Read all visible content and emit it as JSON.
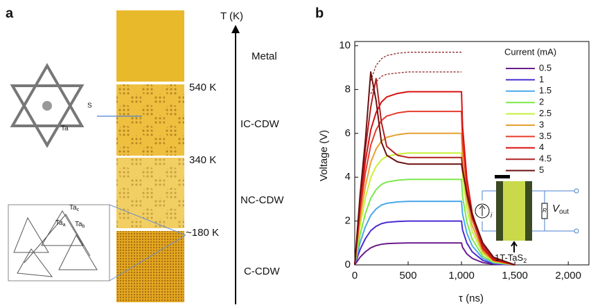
{
  "panel_a": {
    "label": "a",
    "axis_label": "T (K)",
    "phases": [
      "Metal",
      "IC-CDW",
      "NC-CDW",
      "C-CDW"
    ],
    "temperatures": [
      "540 K",
      "340 K",
      "~180 K"
    ],
    "star_labels": {
      "s": "S",
      "ta": "Ta"
    },
    "lattice_labels": [
      {
        "base": "Ta",
        "sub": "c"
      },
      {
        "base": "Ta",
        "sub": "a"
      },
      {
        "base": "Ta",
        "sub": "b"
      }
    ]
  },
  "chart_data": {
    "type": "line",
    "panel_label": "b",
    "x_label": "τ (ns)",
    "y_label": "Voltage (V)",
    "legend_title": "Current (mA)",
    "x": [
      0,
      50,
      100,
      150,
      200,
      250,
      300,
      400,
      500,
      700,
      1000,
      1010,
      1050,
      1100,
      1200,
      1300,
      1500
    ],
    "series": [
      {
        "name": "0.5",
        "color": "#6a1b8a",
        "values": [
          0,
          0.35,
          0.6,
          0.78,
          0.88,
          0.94,
          0.97,
          0.99,
          1,
          1,
          1,
          0.8,
          0.5,
          0.3,
          0.1,
          0.03,
          0
        ]
      },
      {
        "name": "1",
        "color": "#4b2bd1",
        "values": [
          0,
          0.7,
          1.2,
          1.56,
          1.76,
          1.88,
          1.94,
          1.98,
          2,
          2,
          2,
          1.6,
          1,
          0.6,
          0.2,
          0.06,
          0
        ]
      },
      {
        "name": "1.5",
        "color": "#4aa8ea",
        "values": [
          0,
          1.02,
          1.74,
          2.26,
          2.55,
          2.73,
          2.81,
          2.87,
          2.9,
          2.9,
          2.9,
          2.32,
          1.45,
          0.87,
          0.29,
          0.09,
          0
        ]
      },
      {
        "name": "2",
        "color": "#7be84a",
        "values": [
          0,
          1.37,
          2.34,
          3.04,
          3.43,
          3.67,
          3.78,
          3.86,
          3.9,
          3.9,
          3.9,
          3.12,
          1.95,
          1.17,
          0.39,
          0.12,
          0
        ]
      },
      {
        "name": "2.5",
        "color": "#c8f03a",
        "values": [
          0,
          1.79,
          3.06,
          3.98,
          4.49,
          4.79,
          4.95,
          5.05,
          5.1,
          5.1,
          5.1,
          4.08,
          2.55,
          1.53,
          0.51,
          0.15,
          0
        ]
      },
      {
        "name": "3",
        "color": "#e6a030",
        "values": [
          0,
          2.1,
          3.6,
          4.68,
          5.28,
          5.64,
          5.82,
          5.94,
          6,
          6,
          6,
          4.8,
          3,
          1.8,
          0.6,
          0.18,
          0
        ]
      },
      {
        "name": "3.5",
        "color": "#e63a2a",
        "values": [
          0,
          2.45,
          4.2,
          5.46,
          6.16,
          6.58,
          6.79,
          6.93,
          7,
          7,
          7,
          5.6,
          3.5,
          2.1,
          0.7,
          0.21,
          0
        ]
      },
      {
        "name": "4",
        "color": "#d81010",
        "values": [
          0,
          2.77,
          4.74,
          6.16,
          6.95,
          7.43,
          7.66,
          7.82,
          7.9,
          7.9,
          7.9,
          6.32,
          3.95,
          2.37,
          0.79,
          0.24,
          0
        ]
      },
      {
        "name": "4.5",
        "color": "#b02020",
        "values": [
          0,
          3,
          5.3,
          7.2,
          8.5,
          6.5,
          5.4,
          5,
          4.9,
          4.9,
          4.9,
          4.4,
          3.2,
          2.2,
          0.9,
          0.3,
          0
        ]
      },
      {
        "name": "5",
        "color": "#6b0f0f",
        "values": [
          0,
          3.2,
          5.7,
          8.8,
          7.5,
          5.6,
          5,
          4.7,
          4.6,
          4.6,
          4.6,
          4.3,
          3.3,
          2.3,
          1,
          0.35,
          0
        ]
      }
    ],
    "projection_x": [
      150,
      200,
      250,
      300,
      400,
      500,
      1000
    ],
    "projections": [
      {
        "color": "#8b1a1a",
        "values": [
          8.4,
          9.1,
          9.4,
          9.55,
          9.65,
          9.7,
          9.7
        ]
      },
      {
        "color": "#8b1a1a",
        "values": [
          7.8,
          8.35,
          8.6,
          8.7,
          8.75,
          8.8,
          8.8
        ]
      }
    ],
    "xlim": [
      0,
      2200
    ],
    "ylim": [
      0,
      10
    ],
    "xticks": [
      0,
      500,
      {
        "value": 1000,
        "label": "1,000"
      },
      {
        "value": 1500,
        "label": "1,500"
      },
      {
        "value": 2000,
        "label": "2,000"
      }
    ],
    "yticks": [
      0,
      2,
      4,
      6,
      8,
      10
    ],
    "inset": {
      "sample": "1T-TaS",
      "sample_sub": "2",
      "voltage": "V",
      "voltage_sub": "out",
      "resistor": "R",
      "source": "i"
    }
  }
}
